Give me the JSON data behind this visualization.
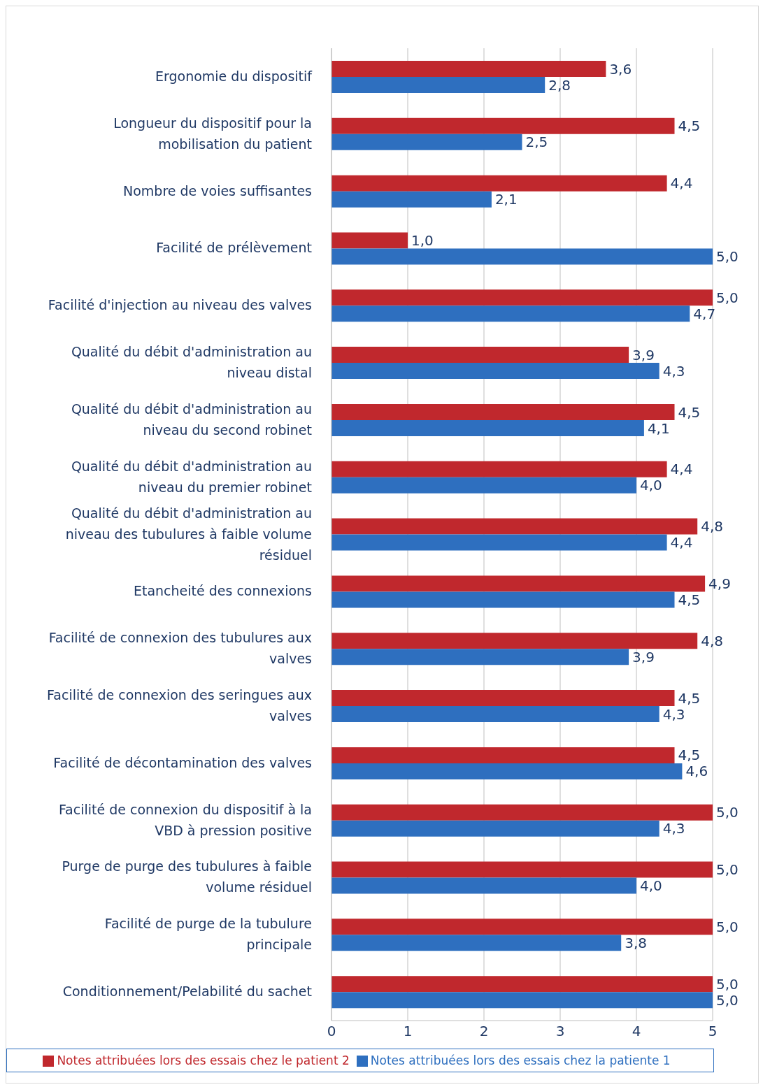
{
  "chart_data": {
    "type": "bar",
    "orientation": "horizontal",
    "categories": [
      "Ergonomie du dispositif",
      "Longueur du dispositif pour la mobilisation du patient",
      "Nombre de voies suffisantes",
      "Facilité de prélèvement",
      "Facilité d'injection au niveau des valves",
      "Qualité du débit d'administration au niveau distal",
      "Qualité du débit d'administration au niveau du second robinet",
      "Qualité du débit d'administration au niveau du premier robinet",
      "Qualité du débit d'administration au niveau des tubulures à faible volume résiduel",
      "Etancheité des connexions",
      "Facilité de connexion des tubulures aux valves",
      "Facilité de connexion des seringues aux valves",
      "Facilité de décontamination des valves",
      "Facilité de connexion du dispositif à la VBD à pression positive",
      "Purge de purge des tubulures à faible volume résiduel",
      "Facilité de purge de la tubulure principale",
      "Conditionnement/Pelabilité du sachet"
    ],
    "series": [
      {
        "name": "Notes attribuées lors des essais chez le patient 2",
        "color": "#c0282d",
        "values": [
          3.6,
          4.5,
          4.4,
          1.0,
          5.0,
          3.9,
          4.5,
          4.4,
          4.8,
          4.9,
          4.8,
          4.5,
          4.5,
          5.0,
          5.0,
          5.0,
          5.0
        ],
        "value_labels": [
          "3,6",
          "4,5",
          "4,4",
          "1,0",
          "5,0",
          "3,9",
          "4,5",
          "4,4",
          "4,8",
          "4,9",
          "4,8",
          "4,5",
          "4,5",
          "5,0",
          "5,0",
          "5,0",
          "5,0"
        ]
      },
      {
        "name": "Notes attribuées lors des essais chez la patiente 1",
        "color": "#2e6fbf",
        "values": [
          2.8,
          2.5,
          2.1,
          5.0,
          4.7,
          4.3,
          4.1,
          4.0,
          4.4,
          4.5,
          3.9,
          4.3,
          4.6,
          4.3,
          4.0,
          3.8,
          5.0
        ],
        "value_labels": [
          "2,8",
          "2,5",
          "2,1",
          "5,0",
          "4,7",
          "4,3",
          "4,1",
          "4,0",
          "4,4",
          "4,5",
          "3,9",
          "4,3",
          "4,6",
          "4,3",
          "4,0",
          "3,8",
          "5,0"
        ]
      }
    ],
    "xlim": [
      0,
      5
    ],
    "xticks": [
      0,
      1,
      2,
      3,
      4,
      5
    ],
    "grid": "x",
    "legend": "bottom"
  }
}
